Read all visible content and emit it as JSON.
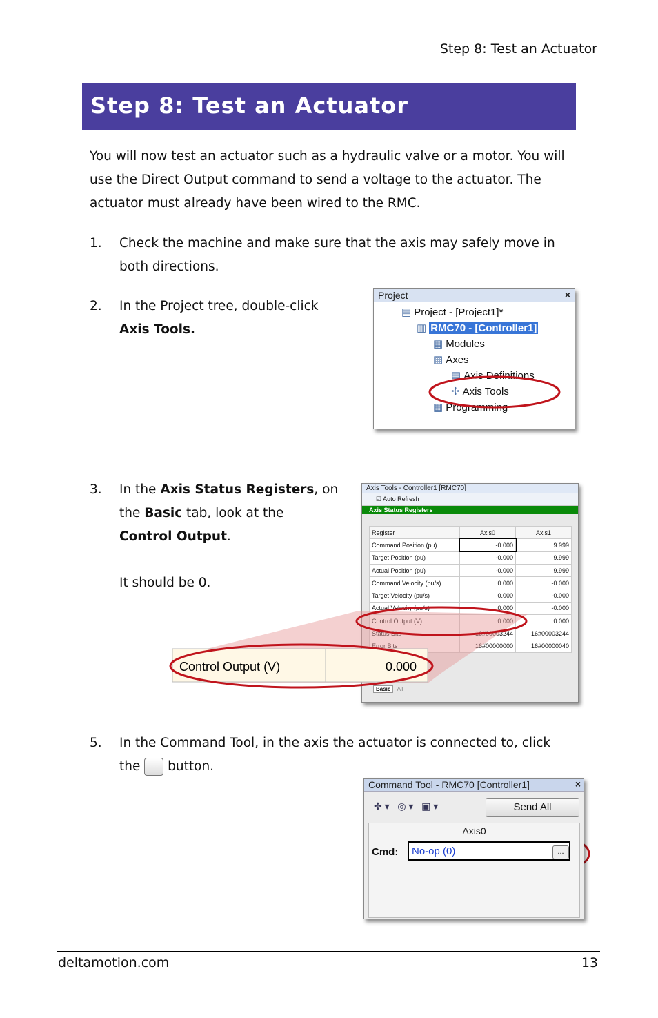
{
  "header": {
    "running_title": "Step 8: Test an Actuator"
  },
  "heading": "Step 8: Test an Actuator",
  "intro": "You will now test an actuator such as a hydraulic valve or a motor. You will use the Direct Output command to send a voltage to the actuator. The actuator must already have been wired to the RMC.",
  "steps": [
    {
      "number": "1.",
      "parts": [
        "Check the machine and make sure that the axis may safely move in both directions."
      ]
    },
    {
      "number": "2.",
      "parts": [
        "In the Project tree, double-click ",
        "Axis Tools."
      ]
    },
    {
      "number": "3.",
      "parts": [
        "In the ",
        "Axis Status Registers",
        ", on the ",
        "Basic",
        " tab, look at the ",
        "Control Output",
        "."
      ],
      "note": "It should be 0."
    },
    {
      "number": "5.",
      "parts": [
        "In the Command Tool, in the axis the actuator is connected to, click the",
        "button."
      ]
    }
  ],
  "project_window": {
    "title": "Project",
    "close": "×",
    "items": [
      "Project - [Project1]*",
      "RMC70 - [Controller1]",
      "Modules",
      "Axes",
      "Axis Definitions",
      "Axis Tools",
      "Programming"
    ]
  },
  "axis_tools_window": {
    "title": "Axis Tools - Controller1 [RMC70]",
    "auto_refresh": "Auto Refresh",
    "panel": "Axis Status Registers",
    "columns": [
      "Register",
      "Axis0",
      "Axis1"
    ],
    "rows": [
      [
        "Command Position (pu)",
        "-0.000",
        "9.999"
      ],
      [
        "Target Position (pu)",
        "-0.000",
        "9.999"
      ],
      [
        "Actual Position (pu)",
        "-0.000",
        "9.999"
      ],
      [
        "Command Velocity (pu/s)",
        "0.000",
        "-0.000"
      ],
      [
        "Target Velocity (pu/s)",
        "0.000",
        "-0.000"
      ],
      [
        "Actual Velocity (pu/s)",
        "0.000",
        "-0.000"
      ],
      [
        "Control Output (V)",
        "0.000",
        "0.000"
      ],
      [
        "Status Bits",
        "16#00003244",
        "16#00003244"
      ],
      [
        "Error Bits",
        "16#00000000",
        "16#00000040"
      ]
    ],
    "tabs": [
      "Basic",
      "All"
    ],
    "zoom": [
      "Control Output (V)",
      "0.000"
    ]
  },
  "command_window": {
    "title": "Command Tool - RMC70 [Controller1]",
    "close": "×",
    "send_all": "Send All",
    "axis": "Axis0",
    "cmd_label": "Cmd:",
    "cmd_value": "No-op (0)",
    "button": "..."
  },
  "footer": {
    "site": "deltamotion.com",
    "page": "13"
  }
}
